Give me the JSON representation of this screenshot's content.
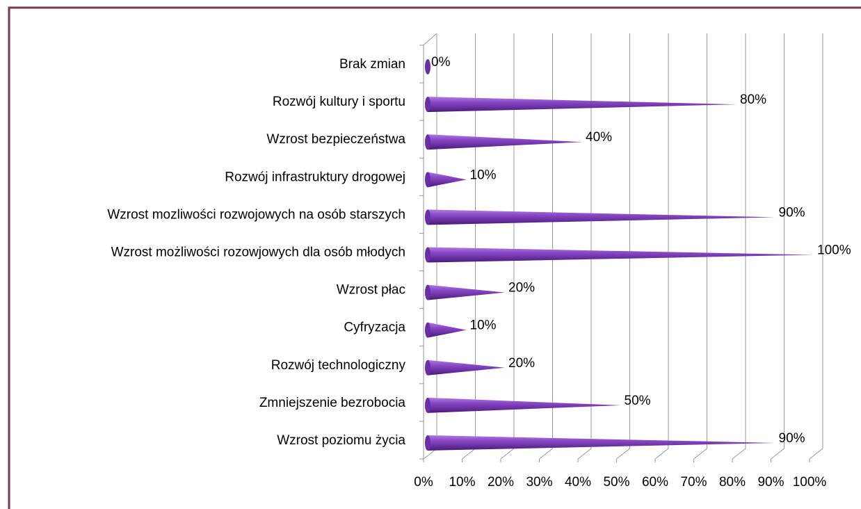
{
  "chart_data": {
    "type": "cone-bar",
    "categories": [
      "Brak zmian",
      "Rozwój kultury i sportu",
      "Wzrost bezpieczeństwa",
      "Rozwój infrastruktury drogowej",
      "Wzrost mozliwości rozwojowych na osób starszych",
      "Wzrost możliwości rozowjowych dla osób młodych",
      "Wzrost płac",
      "Cyfryzacja",
      "Rozwój technologiczny",
      "Zmniejszenie bezrobocia",
      "Wzrost poziomu życia"
    ],
    "values": [
      0,
      80,
      40,
      10,
      90,
      100,
      20,
      10,
      20,
      50,
      90
    ],
    "value_labels": [
      "0%",
      "80%",
      "40%",
      "10%",
      "90%",
      "100%",
      "20%",
      "10%",
      "20%",
      "50%",
      "90%"
    ],
    "color": "#7b3fb0",
    "xlim": [
      0,
      100
    ],
    "xticks": [
      {
        "value": 0,
        "label": "0%"
      },
      {
        "value": 10,
        "label": "10%"
      },
      {
        "value": 20,
        "label": "20%"
      },
      {
        "value": 30,
        "label": "30%"
      },
      {
        "value": 40,
        "label": "40%"
      },
      {
        "value": 50,
        "label": "50%"
      },
      {
        "value": 60,
        "label": "60%"
      },
      {
        "value": 70,
        "label": "70%"
      },
      {
        "value": 80,
        "label": "80%"
      },
      {
        "value": 90,
        "label": "90%"
      },
      {
        "value": 100,
        "label": "100%"
      }
    ],
    "grid": true
  }
}
